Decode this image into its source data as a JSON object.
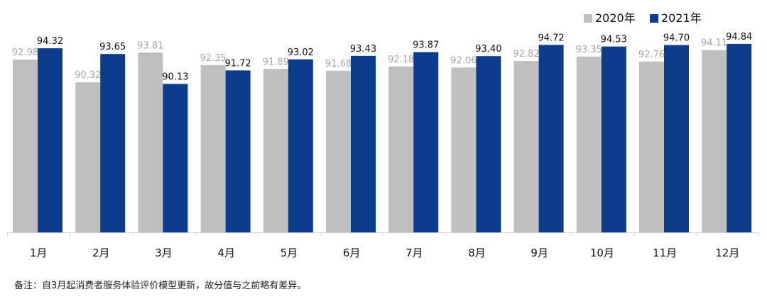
{
  "chart_data": {
    "type": "bar",
    "categories": [
      "1月",
      "2月",
      "3月",
      "4月",
      "5月",
      "6月",
      "7月",
      "8月",
      "9月",
      "10月",
      "11月",
      "12月"
    ],
    "series": [
      {
        "name": "2020年",
        "color": "#bfbfbf",
        "label_color": "#a6a6a6",
        "values": [
          92.98,
          90.32,
          93.81,
          92.35,
          91.89,
          91.68,
          92.18,
          92.06,
          92.82,
          93.35,
          92.76,
          94.11
        ]
      },
      {
        "name": "2021年",
        "color": "#0d3b8c",
        "label_color": "#111111",
        "values": [
          94.32,
          93.65,
          90.13,
          91.72,
          93.02,
          93.43,
          93.87,
          93.4,
          94.72,
          94.53,
          94.7,
          94.84
        ]
      }
    ],
    "title": "",
    "xlabel": "",
    "ylabel": "",
    "legend_position": "top-right",
    "grid": false
  },
  "note": "备注：自3月起消费者服务体验评价模型更新，故分值与之前略有差异。"
}
